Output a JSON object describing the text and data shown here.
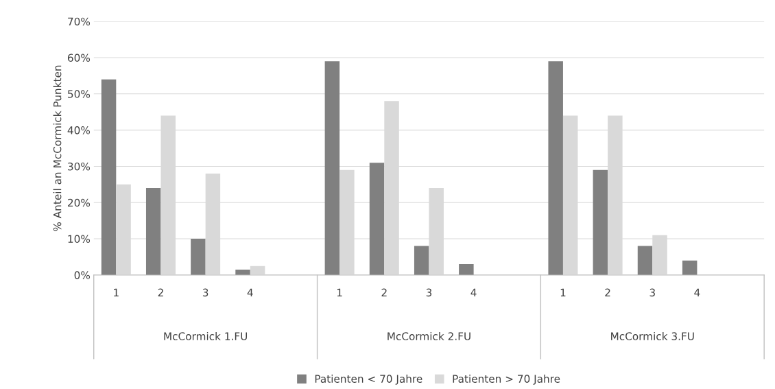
{
  "chart_data": {
    "type": "bar",
    "ylabel": "% Anteil an McCormick Punkten",
    "categories": [
      "1",
      "2",
      "3",
      "4",
      null,
      "1",
      "2",
      "3",
      "4",
      null,
      "1",
      "2",
      "3",
      "4",
      null
    ],
    "series": [
      {
        "name": "Patienten < 70 Jahre",
        "color": "#808080",
        "values": [
          54,
          24,
          10,
          1.5,
          null,
          59,
          31,
          8,
          3,
          null,
          59,
          29,
          8,
          4,
          null
        ]
      },
      {
        "name": "Patienten > 70 Jahre",
        "color": "#d9d9d9",
        "values": [
          25,
          44,
          28,
          2.5,
          null,
          29,
          48,
          24,
          0,
          null,
          44,
          44,
          11,
          0,
          null
        ]
      }
    ],
    "ylim": [
      0,
      70
    ],
    "yticks": [
      {
        "value": 0,
        "label": "0%"
      },
      {
        "value": 10,
        "label": "10%"
      },
      {
        "value": 20,
        "label": "20%"
      },
      {
        "value": 30,
        "label": "30%"
      },
      {
        "value": 40,
        "label": "40%"
      },
      {
        "value": 50,
        "label": "50%"
      },
      {
        "value": 60,
        "label": "60%"
      },
      {
        "value": 70,
        "label": "70%"
      }
    ],
    "grid": "y",
    "legend": "bottom",
    "annotations": [
      "McCormick 1.FU",
      "McCormick 2.FU",
      "McCormick 3.FU"
    ]
  }
}
